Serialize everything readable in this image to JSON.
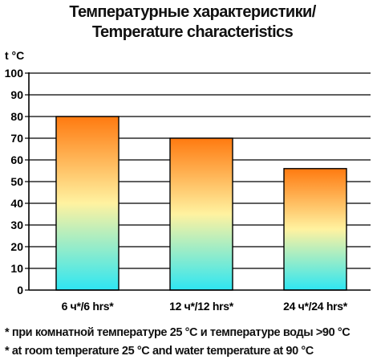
{
  "chart_data": {
    "type": "bar",
    "title": "Температурные характеристики/",
    "subtitle": "Temperature characteristics",
    "ylabel": "t °C",
    "xlabel": "",
    "categories": [
      "6 ч*/6 hrs*",
      "12 ч*/12 hrs*",
      "24 ч*/24 hrs*"
    ],
    "values": [
      80,
      70,
      56
    ],
    "ylim": [
      0,
      100
    ],
    "yticks": [
      0,
      10,
      20,
      30,
      40,
      50,
      60,
      70,
      80,
      90,
      100
    ],
    "grid": true,
    "legend": "none",
    "bar_gradient": {
      "top": "#ff7a10",
      "middle": "#fff2a0",
      "bottom": "#2ee6f2"
    },
    "footnotes": [
      "* при комнатной температуре 25 °C и температуре воды >90 °C",
      "* at room temperature 25 °C and water temperature at 90 °C"
    ]
  }
}
